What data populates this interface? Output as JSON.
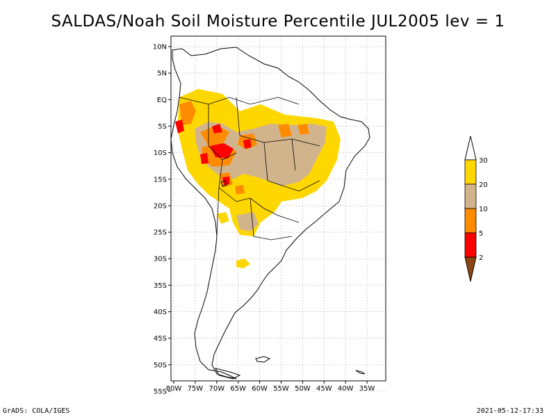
{
  "title": "SALDAS/Noah Soil Moisture Percentile JUL2005 lev = 1",
  "footer": {
    "left": "GrADS: COLA/IGES",
    "right": "2021-05-12-17:33"
  },
  "map": {
    "lon_range": [
      -80,
      -30
    ],
    "lat_range": [
      -55,
      10
    ],
    "lat_ticks": [
      "10N",
      "5N",
      "EQ",
      "5S",
      "10S",
      "15S",
      "20S",
      "25S",
      "30S",
      "35S",
      "40S",
      "45S",
      "50S",
      "55S"
    ],
    "lon_ticks": [
      "80W",
      "75W",
      "70W",
      "65W",
      "60W",
      "55W",
      "50W",
      "45W",
      "40W",
      "35W"
    ],
    "grid": true
  },
  "legend": {
    "labels": [
      "2",
      "5",
      "10",
      "20",
      "30"
    ],
    "colors": {
      "below_2": "#8b4513",
      "2_5": "#ff0000",
      "5_10": "#ff8c00",
      "10_20": "#d2b48c",
      "20_30": "#ffd700",
      "above_30": "#ffffff"
    }
  }
}
